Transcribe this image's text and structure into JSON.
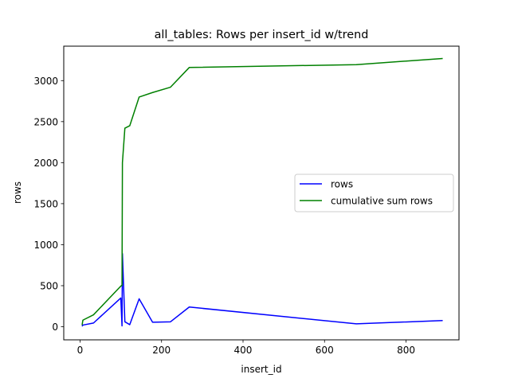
{
  "chart_data": {
    "type": "line",
    "title": "all_tables: Rows per insert_id w/trend",
    "xlabel": "insert_id",
    "ylabel": "rows",
    "xlim": [
      -40,
      930
    ],
    "ylim": [
      -160,
      3420
    ],
    "xticks": [
      0,
      200,
      400,
      600,
      800
    ],
    "yticks": [
      0,
      500,
      1000,
      1500,
      2000,
      2500,
      3000
    ],
    "grid": false,
    "legend_position": "center-right",
    "series": [
      {
        "name": "rows",
        "color": "#0000ff",
        "x": [
          5,
          7,
          33,
          100,
          103,
          104,
          110,
          122,
          145,
          178,
          222,
          268,
          678,
          890
        ],
        "y": [
          5,
          20,
          45,
          350,
          10,
          890,
          60,
          25,
          340,
          55,
          60,
          240,
          35,
          75
        ]
      },
      {
        "name": "cumulative sum rows",
        "color": "#008000",
        "x": [
          5,
          7,
          33,
          100,
          103,
          104,
          110,
          122,
          145,
          178,
          222,
          268,
          678,
          890
        ],
        "y": [
          20,
          80,
          145,
          495,
          505,
          2000,
          2420,
          2450,
          2800,
          2855,
          2920,
          3160,
          3195,
          3270
        ]
      }
    ]
  }
}
